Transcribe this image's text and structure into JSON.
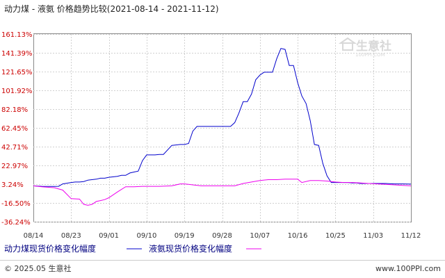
{
  "chart_data": {
    "type": "line",
    "title": "动力煤 - 液氨 价格趋势比较(2021-08-14 - 2021-11-12)",
    "x_labels": [
      "08/14",
      "08/23",
      "09/01",
      "09/10",
      "09/19",
      "09/28",
      "10/07",
      "10/16",
      "10/25",
      "11/03",
      "11/12"
    ],
    "y_labels": [
      "161.13%",
      "141.39%",
      "121.65%",
      "101.92%",
      "82.18%",
      "62.45%",
      "42.71%",
      "22.97%",
      "3.24%",
      "-16.50%",
      "-36.24%"
    ],
    "y_ticks": [
      161.13,
      141.39,
      121.65,
      101.92,
      82.18,
      62.45,
      42.71,
      22.97,
      3.24,
      -16.5,
      -36.24
    ],
    "ylim": [
      -36.24,
      161.13
    ],
    "x_range_days": [
      0,
      90
    ],
    "grid": true,
    "series": [
      {
        "name": "动力煤现货价格变化幅度",
        "color": "#0000cc",
        "x": [
          0,
          2,
          5,
          6,
          7,
          9,
          10,
          11,
          12,
          13,
          15,
          16,
          17,
          18,
          20,
          21,
          22,
          23,
          24,
          25,
          26,
          27,
          28,
          29,
          30,
          31,
          33,
          35,
          36,
          37,
          38,
          39,
          40,
          41,
          42,
          43,
          44,
          45,
          46,
          47,
          48,
          49,
          50,
          51,
          52,
          53,
          54,
          55,
          56,
          57,
          58,
          59,
          60,
          61,
          62,
          63,
          64,
          65,
          66,
          67,
          68,
          69,
          70,
          71,
          72,
          73,
          74,
          75,
          76,
          77,
          78,
          80,
          82,
          84,
          86,
          88,
          90
        ],
        "y": [
          1.5,
          1.0,
          0.8,
          1.0,
          3.5,
          5.0,
          5.5,
          5.5,
          6.0,
          7.5,
          8.5,
          9.5,
          9.5,
          10.5,
          11.5,
          12.5,
          12.5,
          15.0,
          16.0,
          17.0,
          28.0,
          34.0,
          34.0,
          34.0,
          34.5,
          34.5,
          44.0,
          45.0,
          45.0,
          46.0,
          59.0,
          64.0,
          64.0,
          64.0,
          64.0,
          64.0,
          64.0,
          64.0,
          64.0,
          64.0,
          68.0,
          78.0,
          90.0,
          90.0,
          98.0,
          113.0,
          118.0,
          121.0,
          121.0,
          121.0,
          135.0,
          146.0,
          145.0,
          128.0,
          128.0,
          110.0,
          96.0,
          88.0,
          70.0,
          45.0,
          44.0,
          25.0,
          12.0,
          5.0,
          5.0,
          5.0,
          5.0,
          5.0,
          4.5,
          4.5,
          4.0,
          4.0,
          4.0,
          4.0,
          3.5,
          3.5,
          3.3
        ]
      },
      {
        "name": "液氨现货价格变化幅度",
        "color": "#ee00ee",
        "x": [
          0,
          2,
          5,
          7,
          9,
          11,
          12,
          13,
          14,
          15,
          16,
          17,
          18,
          20,
          22,
          24,
          26,
          28,
          30,
          33,
          35,
          36,
          37,
          38,
          40,
          42,
          44,
          46,
          48,
          50,
          52,
          54,
          56,
          58,
          60,
          62,
          63,
          64,
          66,
          68,
          70,
          72,
          74,
          76,
          78,
          80,
          82,
          84,
          86,
          88,
          90
        ],
        "y": [
          1.5,
          0.5,
          -0.5,
          -3.0,
          -12.0,
          -12.5,
          -18.0,
          -19.0,
          -18.0,
          -15.0,
          -14.0,
          -13.0,
          -11.0,
          -5.0,
          0.5,
          0.5,
          1.0,
          1.0,
          1.0,
          1.5,
          3.5,
          3.5,
          3.0,
          2.5,
          1.5,
          1.5,
          1.5,
          1.5,
          1.5,
          4.0,
          5.5,
          7.0,
          8.0,
          8.0,
          8.5,
          8.5,
          8.5,
          5.0,
          7.0,
          7.0,
          6.5,
          5.5,
          5.0,
          5.0,
          4.5,
          4.0,
          3.5,
          3.0,
          2.5,
          2.0,
          1.5
        ]
      }
    ]
  },
  "legend": [
    {
      "label": "动力煤现货价格变化幅度",
      "color": "#0000cc"
    },
    {
      "label": "液氨现货价格变化幅度",
      "color": "#ee00ee"
    }
  ],
  "footer": {
    "copyright": "© 2025.05 生意社",
    "url": "www.100PPI.com"
  },
  "watermark": {
    "name": "生意社",
    "sub": "100PPI.COM"
  }
}
